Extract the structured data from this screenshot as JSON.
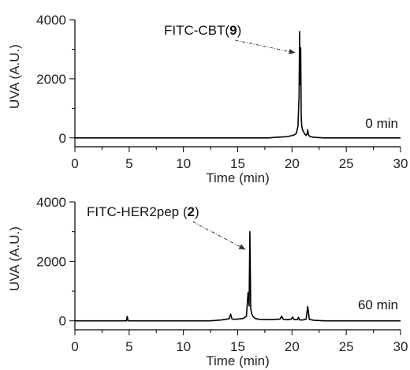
{
  "chart_data": [
    {
      "type": "line",
      "xlabel": "Time (min)",
      "ylabel": "UVA (A.U.)",
      "xlim": [
        0,
        30
      ],
      "ylim": [
        -300,
        4000
      ],
      "xticks": [
        "0",
        "5",
        "10",
        "15",
        "20",
        "25",
        "30"
      ],
      "yticks": [
        "0",
        "2000",
        "4000"
      ],
      "condition_label": "0 min",
      "annotation": {
        "prefix": "FITC-CBT(",
        "bold": "9",
        "suffix": ")",
        "points_to": [
          20.75,
          3600
        ]
      },
      "series": [
        {
          "x": [
            0,
            17.8,
            18.5,
            19.0,
            19.5,
            19.8,
            20.0,
            20.2,
            20.4,
            20.55,
            20.65,
            20.7,
            20.75,
            20.8,
            20.85,
            20.9,
            20.95,
            21.0,
            21.1,
            21.2,
            21.3,
            21.4,
            21.45,
            21.5,
            21.6,
            21.8,
            22.2,
            23.0,
            30
          ],
          "y": [
            0,
            0,
            20,
            30,
            40,
            60,
            80,
            100,
            150,
            400,
            1400,
            3600,
            1800,
            3050,
            700,
            400,
            300,
            250,
            180,
            120,
            80,
            150,
            280,
            120,
            60,
            30,
            15,
            0,
            0
          ]
        }
      ]
    },
    {
      "type": "line",
      "xlabel": "Time (min)",
      "ylabel": "UVA (A.U.)",
      "xlim": [
        0,
        30
      ],
      "ylim": [
        -300,
        4000
      ],
      "xticks": [
        "0",
        "5",
        "10",
        "15",
        "20",
        "25",
        "30"
      ],
      "yticks": [
        "0",
        "2000",
        "4000"
      ],
      "condition_label": "60 min",
      "annotation": {
        "prefix": "FITC-HER2pep (",
        "bold": "2",
        "suffix": ")",
        "points_to": [
          16.15,
          3000
        ]
      },
      "series": [
        {
          "x": [
            0,
            4.75,
            4.82,
            4.9,
            12.5,
            13.5,
            14.2,
            14.35,
            14.45,
            14.6,
            15.0,
            15.5,
            15.8,
            15.95,
            16.05,
            16.12,
            16.2,
            16.28,
            16.4,
            16.6,
            17.0,
            18.0,
            18.9,
            19.05,
            19.2,
            19.6,
            19.95,
            20.05,
            20.2,
            20.5,
            20.6,
            20.7,
            21.0,
            21.3,
            21.45,
            21.6,
            22.0,
            23.0,
            30
          ],
          "y": [
            0,
            0,
            150,
            0,
            0,
            30,
            70,
            230,
            80,
            50,
            60,
            80,
            150,
            950,
            500,
            3000,
            400,
            250,
            150,
            80,
            50,
            40,
            60,
            160,
            50,
            40,
            60,
            130,
            40,
            40,
            120,
            30,
            30,
            60,
            480,
            50,
            20,
            0,
            0
          ]
        }
      ]
    }
  ]
}
